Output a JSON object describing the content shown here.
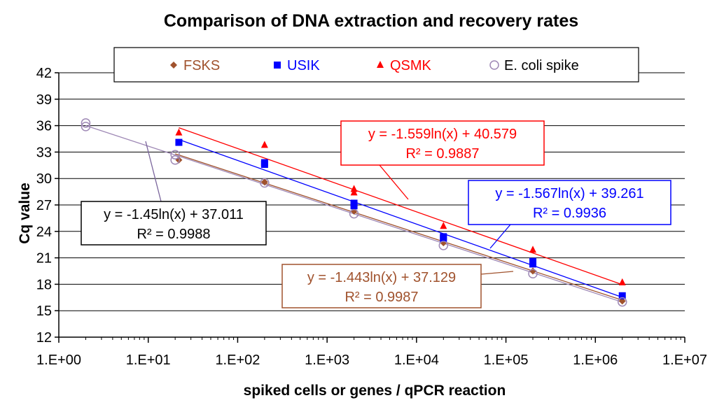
{
  "chart_data": {
    "type": "scatter",
    "title": "Comparison of DNA extraction and recovery rates",
    "xlabel": "spiked cells or genes / qPCR reaction",
    "ylabel": "Cq value",
    "x_scale": "log10",
    "xlim": [
      1,
      10000000
    ],
    "ylim": [
      12,
      42
    ],
    "x_tick_labels": [
      "1.E+00",
      "1.E+01",
      "1.E+02",
      "1.E+03",
      "1.E+04",
      "1.E+05",
      "1.E+06",
      "1.E+07"
    ],
    "y_ticks": [
      12,
      15,
      18,
      21,
      24,
      27,
      30,
      33,
      36,
      39,
      42
    ],
    "grid": "horizontal",
    "legend_position": "top",
    "series": [
      {
        "name": "FSKS",
        "color": "#A0522D",
        "marker": "diamond",
        "points": [
          [
            22,
            32.1
          ],
          [
            200,
            29.6
          ],
          [
            2000,
            26.3
          ],
          [
            20000,
            22.7
          ],
          [
            200000,
            19.5
          ],
          [
            2000000,
            16.1
          ]
        ],
        "trendline": {
          "slope": -1.443,
          "intercept": 37.129,
          "x_range": [
            20,
            2000000
          ]
        },
        "equation": "y = -1.443ln(x) + 37.129",
        "r2": "R² = 0.9987"
      },
      {
        "name": "USIK",
        "color": "#0000FF",
        "marker": "square",
        "points": [
          [
            22,
            34.1
          ],
          [
            200,
            31.8
          ],
          [
            200,
            31.6
          ],
          [
            2000,
            27.2
          ],
          [
            2000,
            26.9
          ],
          [
            20000,
            23.4
          ],
          [
            20000,
            23.2
          ],
          [
            200000,
            20.6
          ],
          [
            200000,
            20.3
          ],
          [
            2000000,
            16.7
          ]
        ],
        "trendline": {
          "slope": -1.567,
          "intercept": 39.261,
          "x_range": [
            22,
            2000000
          ]
        },
        "equation": "y = -1.567ln(x) + 39.261",
        "r2": "R² = 0.9936"
      },
      {
        "name": "QSMK",
        "color": "#FF0000",
        "marker": "triangle",
        "points": [
          [
            22,
            35.2
          ],
          [
            200,
            33.8
          ],
          [
            2000,
            28.8
          ],
          [
            2000,
            28.4
          ],
          [
            20000,
            24.6
          ],
          [
            200000,
            21.9
          ],
          [
            2000000,
            18.2
          ]
        ],
        "trendline": {
          "slope": -1.559,
          "intercept": 40.579,
          "x_range": [
            22,
            2000000
          ]
        },
        "equation": "y = -1.559ln(x) + 40.579",
        "r2": "R² = 0.9887"
      },
      {
        "name": "E. coli spike",
        "color": "#9E88B5",
        "marker": "circle-open",
        "points": [
          [
            2,
            36.3
          ],
          [
            2,
            35.9
          ],
          [
            20,
            32.7
          ],
          [
            20,
            32.1
          ],
          [
            200,
            29.5
          ],
          [
            2000,
            26.0
          ],
          [
            20000,
            22.4
          ],
          [
            200000,
            19.2
          ],
          [
            2000000,
            16.0
          ]
        ],
        "trendline": {
          "slope": -1.45,
          "intercept": 37.011,
          "x_range": [
            2,
            2000000
          ]
        },
        "equation": "y = -1.45ln(x) + 37.011",
        "r2": "R² = 0.9988"
      }
    ]
  }
}
